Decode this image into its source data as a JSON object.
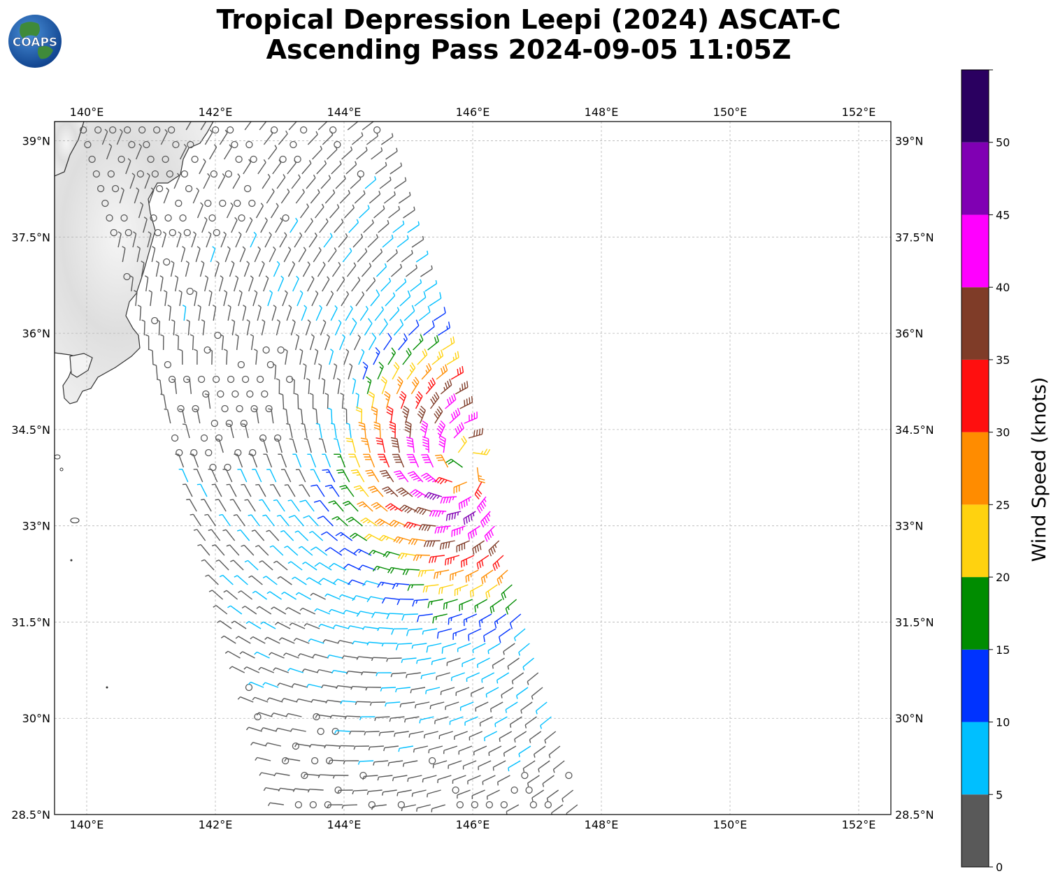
{
  "title_line1": "Tropical Depression Leepi (2024) ASCAT-C",
  "title_line2": "Ascending Pass 2024-09-05 11:05Z",
  "logo_text": "COAPS",
  "map": {
    "lon_range": [
      139.5,
      152.5
    ],
    "lat_range": [
      28.5,
      39.3
    ],
    "lon_ticks": [
      "140°E",
      "142°E",
      "144°E",
      "146°E",
      "148°E",
      "150°E",
      "152°E"
    ],
    "lat_ticks": [
      "39°N",
      "37.5°N",
      "36°N",
      "34.5°N",
      "33°N",
      "31.5°N",
      "30°N",
      "28.5°N"
    ],
    "gridlines": true,
    "storm_center": {
      "lon": 145.9,
      "lat": 33.95
    },
    "swath_edges": {
      "north_west_lon": 139.8,
      "north_east_lon": 144.6,
      "south_west_lon": 143.0,
      "south_east_lon": 147.8
    }
  },
  "colorbar": {
    "label": "Wind Speed (knots)",
    "ticks": [
      "0",
      "5",
      "10",
      "15",
      "20",
      "25",
      "30",
      "35",
      "40",
      "45",
      "50"
    ],
    "bins": [
      {
        "min": 0,
        "max": 5,
        "color": "#595959"
      },
      {
        "min": 5,
        "max": 10,
        "color": "#00bfff"
      },
      {
        "min": 10,
        "max": 15,
        "color": "#0033ff"
      },
      {
        "min": 15,
        "max": 20,
        "color": "#008c00"
      },
      {
        "min": 20,
        "max": 25,
        "color": "#ffd20f"
      },
      {
        "min": 25,
        "max": 30,
        "color": "#ff8c00"
      },
      {
        "min": 30,
        "max": 35,
        "color": "#ff0f0f"
      },
      {
        "min": 35,
        "max": 40,
        "color": "#7f3c28"
      },
      {
        "min": 40,
        "max": 45,
        "color": "#ff00ff"
      },
      {
        "min": 45,
        "max": 50,
        "color": "#8000b3"
      },
      {
        "min": 50,
        "max": 55,
        "color": "#2a0060"
      }
    ]
  }
}
